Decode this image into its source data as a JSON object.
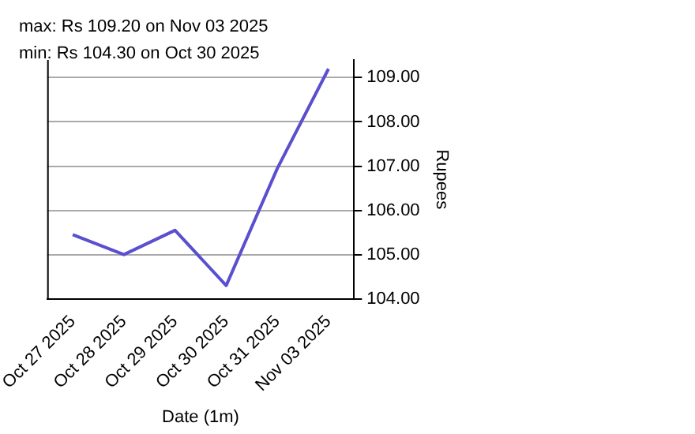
{
  "chart_data": {
    "type": "line",
    "xlabel": "Date (1m)",
    "ylabel": "Rupees",
    "annotations": [
      "max: Rs 109.20 on Nov 03 2025",
      "min: Rs 104.30 on Oct 30 2025"
    ],
    "categories": [
      "Oct 27 2025",
      "Oct 28 2025",
      "Oct 29 2025",
      "Oct 30 2025",
      "Oct 31 2025",
      "Nov 03 2025"
    ],
    "series": [
      {
        "color": "#5a4fcf",
        "values": [
          105.45,
          105.0,
          105.55,
          104.3,
          106.95,
          109.2
        ]
      }
    ],
    "ylim": [
      104,
      109.4
    ],
    "yticks": [
      {
        "value": 104,
        "label": "104.00"
      },
      {
        "value": 105,
        "label": "105.00"
      },
      {
        "value": 106,
        "label": "106.00"
      },
      {
        "value": 107,
        "label": "107.00"
      },
      {
        "value": 108,
        "label": "108.00"
      },
      {
        "value": 109,
        "label": "109.00"
      }
    ],
    "grid": "y",
    "legend": false,
    "marker": "none",
    "line_style": "solid"
  }
}
